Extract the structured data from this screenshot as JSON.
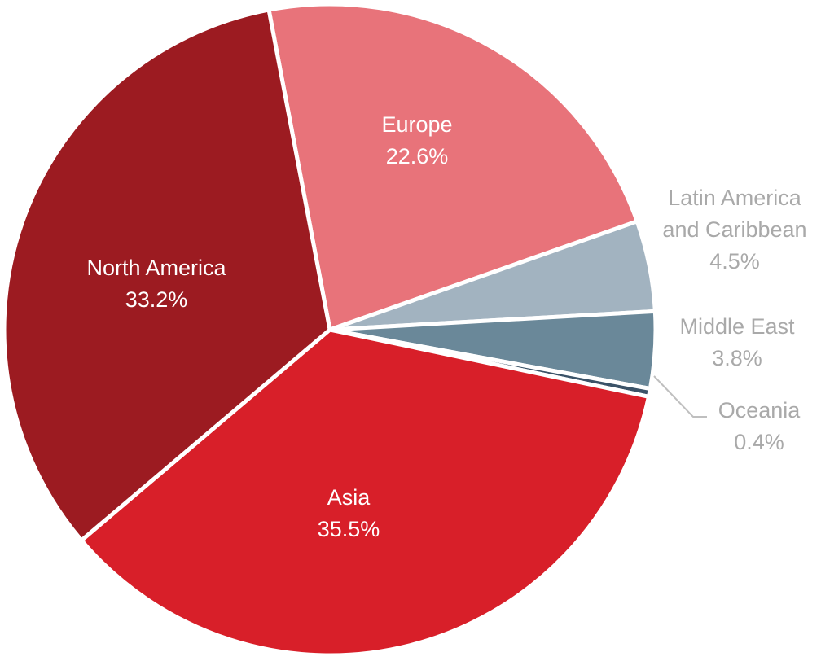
{
  "chart_data": {
    "type": "pie",
    "title": "",
    "slices": [
      {
        "label": "Europe",
        "value": 22.6,
        "value_label": "22.6%",
        "color": "#e8737a",
        "label_color": "#ffffff"
      },
      {
        "label_lines": [
          "Latin America",
          "and Caribbean"
        ],
        "value": 4.5,
        "value_label": "4.5%",
        "color": "#a2b3c0",
        "label_color": "#a9a9a9"
      },
      {
        "label": "Middle East",
        "value": 3.8,
        "value_label": "3.8%",
        "color": "#6a8899",
        "label_color": "#a9a9a9"
      },
      {
        "label": "Oceania",
        "value": 0.4,
        "value_label": "0.4%",
        "color": "#3b5368",
        "label_color": "#a9a9a9"
      },
      {
        "label": "Asia",
        "value": 35.5,
        "value_label": "35.5%",
        "color": "#d81f29",
        "label_color": "#ffffff"
      },
      {
        "label": "North America",
        "value": 33.2,
        "value_label": "33.2%",
        "color": "#9c1b21",
        "label_color": "#ffffff"
      }
    ]
  }
}
